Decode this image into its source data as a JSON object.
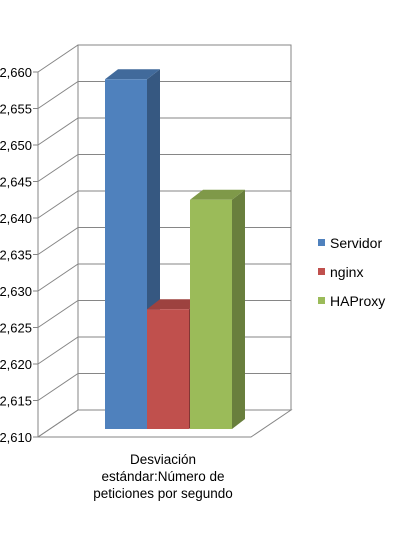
{
  "chart_data": {
    "type": "bar",
    "subtype": "3d-clustered-column",
    "categories": [
      "Desviación estándar:Número de peticiones por segundo"
    ],
    "category_lines": [
      "Desviación",
      "estándar:Número de",
      "peticiones por segundo"
    ],
    "series": [
      {
        "name": "Servidor",
        "values": [
          2.659
        ],
        "color": "#4f81bd"
      },
      {
        "name": "nginx",
        "values": [
          2.6275
        ],
        "color": "#c0504d"
      },
      {
        "name": "HAProxy",
        "values": [
          2.6425
        ],
        "color": "#9bbb59"
      }
    ],
    "ylim": [
      2.61,
      2.66
    ],
    "yticks": [
      "2,610",
      "2,615",
      "2,620",
      "2,625",
      "2,630",
      "2,635",
      "2,640",
      "2,645",
      "2,650",
      "2,655",
      "2,660"
    ],
    "ytick_values": [
      2.61,
      2.615,
      2.62,
      2.625,
      2.63,
      2.635,
      2.64,
      2.645,
      2.65,
      2.655,
      2.66
    ],
    "grid": true,
    "legend_position": "right"
  }
}
